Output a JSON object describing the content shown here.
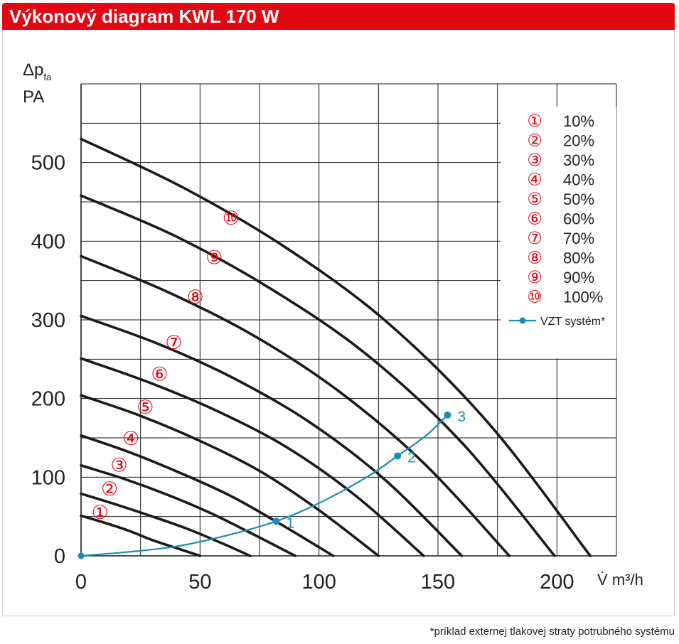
{
  "title": "Výkonový diagram KWL 170 W",
  "footnote": "*príklad externej tlakovej straty potrubného systému",
  "colors": {
    "accent": "#e30613",
    "curve": "#1a1a1a",
    "system": "#1b8db5",
    "grid": "#1a1a1a"
  },
  "chart_data": {
    "type": "line",
    "ylabel_main": "Δp",
    "ylabel_sub": "fa",
    "ylabel_unit": "PA",
    "xlabel_symbol": "V̇",
    "xlabel_unit": "m³/h",
    "xlim": [
      0,
      225
    ],
    "ylim": [
      0,
      600
    ],
    "x_ticks": [
      "0",
      "50",
      "100",
      "150",
      "200"
    ],
    "x_tick_values": [
      0,
      50,
      100,
      150,
      200
    ],
    "y_ticks": [
      "0",
      "100",
      "200",
      "300",
      "400",
      "500"
    ],
    "y_tick_values": [
      0,
      100,
      200,
      300,
      400,
      500
    ],
    "grid": true,
    "legend_position": "top-right",
    "series": [
      {
        "name": "10%",
        "marker": "①",
        "x": [
          0,
          10,
          20,
          30,
          40,
          50
        ],
        "y": [
          51,
          42,
          32,
          20,
          10,
          0
        ],
        "label_at": [
          8,
          55
        ]
      },
      {
        "name": "20%",
        "marker": "②",
        "x": [
          0,
          15,
          30,
          45,
          60,
          71
        ],
        "y": [
          79,
          65,
          50,
          34,
          15,
          0
        ],
        "label_at": [
          12,
          85
        ]
      },
      {
        "name": "30%",
        "marker": "③",
        "x": [
          0,
          18,
          36,
          54,
          72,
          90
        ],
        "y": [
          115,
          98,
          78,
          55,
          28,
          0
        ],
        "label_at": [
          16,
          115
        ]
      },
      {
        "name": "40%",
        "marker": "④",
        "x": [
          0,
          21,
          42,
          63,
          84,
          106
        ],
        "y": [
          153,
          131,
          105,
          76,
          40,
          0
        ],
        "label_at": [
          21,
          149
        ]
      },
      {
        "name": "50%",
        "marker": "⑤",
        "x": [
          0,
          25,
          50,
          75,
          100,
          125
        ],
        "y": [
          204,
          178,
          146,
          108,
          58,
          0
        ],
        "label_at": [
          27,
          189
        ]
      },
      {
        "name": "60%",
        "marker": "⑥",
        "x": [
          0,
          29,
          58,
          87,
          116,
          144
        ],
        "y": [
          251,
          220,
          183,
          137,
          75,
          0
        ],
        "label_at": [
          33,
          231
        ]
      },
      {
        "name": "70%",
        "marker": "⑦",
        "x": [
          0,
          32,
          64,
          96,
          128,
          160
        ],
        "y": [
          305,
          270,
          226,
          170,
          96,
          0
        ],
        "label_at": [
          39,
          271
        ]
      },
      {
        "name": "80%",
        "marker": "⑧",
        "x": [
          0,
          36,
          72,
          108,
          144,
          180
        ],
        "y": [
          381,
          336,
          281,
          210,
          118,
          0
        ],
        "label_at": [
          48,
          329
        ]
      },
      {
        "name": "90%",
        "marker": "⑨",
        "x": [
          0,
          40,
          80,
          120,
          160,
          199
        ],
        "y": [
          458,
          406,
          339,
          256,
          144,
          0
        ],
        "label_at": [
          56,
          379
        ]
      },
      {
        "name": "100%",
        "marker": "⑩",
        "x": [
          0,
          43,
          86,
          129,
          172,
          214
        ],
        "y": [
          530,
          468,
          392,
          296,
          166,
          0
        ],
        "label_at": [
          63,
          429
        ]
      }
    ],
    "system_curve": {
      "name": "VZT systém*",
      "x": [
        0,
        20,
        40,
        60,
        82,
        100,
        120,
        133,
        145,
        154
      ],
      "y": [
        0,
        5,
        12,
        25,
        44,
        67,
        100,
        127,
        153,
        179
      ],
      "points": [
        {
          "label": "1",
          "x": 82,
          "y": 44
        },
        {
          "label": "2",
          "x": 133,
          "y": 127
        },
        {
          "label": "3",
          "x": 154,
          "y": 179
        }
      ],
      "origin_marker": {
        "x": 0,
        "y": 0
      }
    }
  }
}
